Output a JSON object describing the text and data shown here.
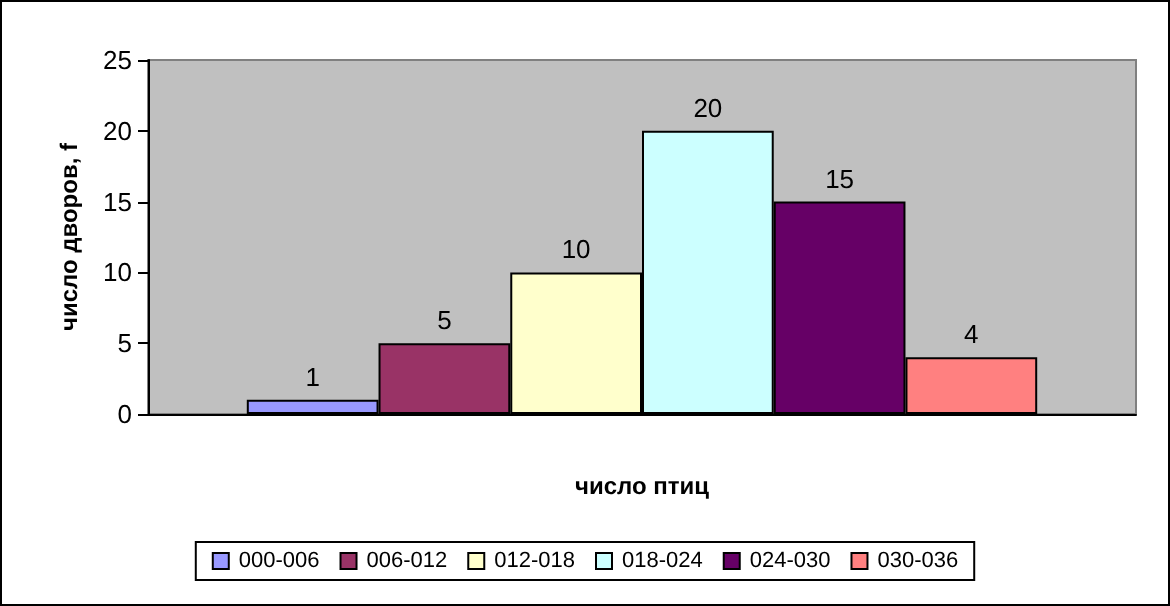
{
  "chart_data": {
    "type": "bar",
    "xlabel": "число птиц",
    "ylabel": "число дворов, f",
    "categories": [
      null
    ],
    "series": [
      {
        "name": "000-006",
        "color": "#9999ff",
        "values": [
          1
        ]
      },
      {
        "name": "006-012",
        "color": "#993366",
        "values": [
          5
        ]
      },
      {
        "name": "012-018",
        "color": "#ffffcc",
        "values": [
          10
        ]
      },
      {
        "name": "018-024",
        "color": "#ccffff",
        "values": [
          20
        ]
      },
      {
        "name": "024-030",
        "color": "#660066",
        "values": [
          15
        ]
      },
      {
        "name": "030-036",
        "color": "#ff8080",
        "values": [
          4
        ]
      }
    ],
    "ylim": [
      0,
      25
    ],
    "yticks": [
      0,
      5,
      10,
      15,
      20,
      25
    ],
    "grid": false,
    "legend": "bottom",
    "data_labels": true
  }
}
